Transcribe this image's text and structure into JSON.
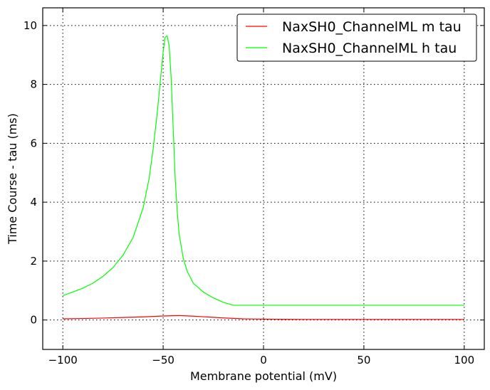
{
  "chart_data": {
    "type": "line",
    "xlabel": "Membrane potential (mV)",
    "ylabel": "Time Course - tau (ms)",
    "xlim": [
      -110,
      110
    ],
    "ylim": [
      -1,
      10.6
    ],
    "xticks": [
      -100,
      -50,
      0,
      50,
      100
    ],
    "yticks": [
      0,
      2,
      4,
      6,
      8,
      10
    ],
    "xtick_labels": [
      "−100",
      "−50",
      "0",
      "50",
      "100"
    ],
    "ytick_labels": [
      "0",
      "2",
      "4",
      "6",
      "8",
      "10"
    ],
    "grid": true,
    "legend_position": "top-right",
    "series": [
      {
        "name": "NaxSH0_ChannelML m tau",
        "color": "#ff0000",
        "x": [
          -100,
          -90,
          -80,
          -70,
          -60,
          -55,
          -50,
          -45,
          -42,
          -40,
          -35,
          -30,
          -25,
          -20,
          -15,
          -10,
          -5,
          0,
          10,
          20,
          40,
          60,
          80,
          100
        ],
        "y": [
          0.04,
          0.05,
          0.065,
          0.085,
          0.105,
          0.12,
          0.135,
          0.145,
          0.148,
          0.145,
          0.13,
          0.11,
          0.09,
          0.07,
          0.055,
          0.04,
          0.035,
          0.03,
          0.025,
          0.02,
          0.02,
          0.02,
          0.02,
          0.02
        ]
      },
      {
        "name": "NaxSH0_ChannelML h tau",
        "color": "#00ff00",
        "x": [
          -100,
          -95,
          -90,
          -85,
          -80,
          -75,
          -70,
          -65,
          -60,
          -57,
          -55,
          -53,
          -51,
          -50,
          -49,
          -48,
          -47,
          -46,
          -45,
          -44,
          -43,
          -42,
          -40,
          -38,
          -35,
          -30,
          -25,
          -20,
          -15,
          -14,
          -10,
          0,
          20,
          40,
          60,
          80,
          100
        ],
        "y": [
          0.83,
          0.95,
          1.08,
          1.25,
          1.48,
          1.78,
          2.2,
          2.8,
          3.8,
          4.8,
          5.8,
          7.0,
          8.4,
          9.1,
          9.6,
          9.65,
          9.3,
          8.2,
          6.5,
          4.8,
          3.7,
          2.9,
          2.1,
          1.65,
          1.25,
          0.95,
          0.75,
          0.6,
          0.5,
          0.5,
          0.5,
          0.5,
          0.5,
          0.5,
          0.5,
          0.5,
          0.5
        ]
      }
    ]
  }
}
